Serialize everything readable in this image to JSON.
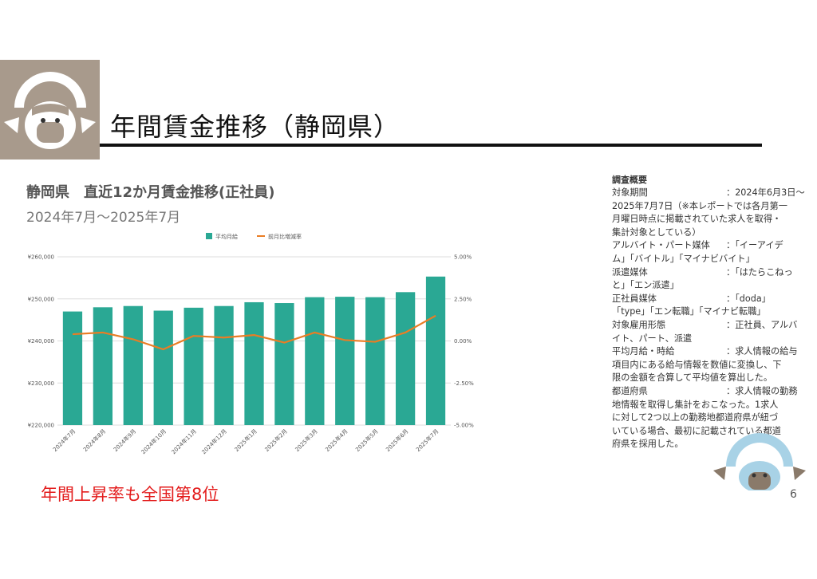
{
  "slide": {
    "title": "年間賃金推移（静岡県）",
    "page_number": "6",
    "highlight": "年間上昇率も全国第8位"
  },
  "chart_header": {
    "title": "静岡県　直近12か月賃金推移(正社員)",
    "subtitle": "2024年7月～2025年7月"
  },
  "chart_data": {
    "type": "bar",
    "categories": [
      "2024年7月",
      "2024年8月",
      "2024年9月",
      "2024年10月",
      "2024年11月",
      "2024年12月",
      "2025年1月",
      "2025年2月",
      "2025年3月",
      "2025年4月",
      "2025年5月",
      "2025年6月",
      "2025年7月"
    ],
    "series": [
      {
        "name": "平均月給",
        "type": "bar",
        "axis": "left",
        "color": "#2aa894",
        "values": [
          247000,
          248000,
          248300,
          247200,
          247900,
          248300,
          249200,
          249000,
          250400,
          250500,
          250400,
          251600,
          255300
        ]
      },
      {
        "name": "前月比増減率",
        "type": "line",
        "axis": "right",
        "color": "#ea7d24",
        "values": [
          0.4,
          0.5,
          0.1,
          -0.5,
          0.3,
          0.2,
          0.35,
          -0.1,
          0.5,
          0.05,
          -0.05,
          0.5,
          1.5
        ]
      }
    ],
    "y_left": {
      "min": 220000,
      "max": 260000,
      "ticks": [
        "¥220,000",
        "¥230,000",
        "¥240,000",
        "¥250,000",
        "¥260,000"
      ]
    },
    "y_right": {
      "min": -5,
      "max": 5,
      "ticks": [
        "-5.00%",
        "-2.50%",
        "0.00%",
        "2.50%",
        "5.00%"
      ]
    },
    "grid": true,
    "legend_position": "top-center"
  },
  "survey": {
    "heading": "調査概要",
    "lines": [
      {
        "label": "対象期間",
        "text": "：2024年6月3日～"
      },
      {
        "label": "",
        "text": "2025年7月7日（※本レポートでは各月第一"
      },
      {
        "label": "",
        "text": "月曜日時点に掲載されていた求人を取得・"
      },
      {
        "label": "",
        "text": "集計対象としている）"
      },
      {
        "label": "アルバイト・パート媒体",
        "text": "：「イーアイデ"
      },
      {
        "label": "",
        "text": "ム」「バイトル」「マイナビバイト」"
      },
      {
        "label": "派遣媒体",
        "text": "：「はたらこねっ"
      },
      {
        "label": "",
        "text": "と」「エン派遣」"
      },
      {
        "label": "正社員媒体",
        "text": "：「doda」"
      },
      {
        "label": "",
        "text": "「type」「エン転職」「マイナビ転職」"
      },
      {
        "label": "対象雇用形態",
        "text": "：正社員、アルバ"
      },
      {
        "label": "",
        "text": "イト、パート、派遣"
      },
      {
        "label": "平均月給・時給",
        "text": "：求人情報の給与"
      },
      {
        "label": "",
        "text": "項目内にある給与情報を数値に変換し、下"
      },
      {
        "label": "",
        "text": "限の金額を合算して平均値を算出した。"
      },
      {
        "label": "都道府県",
        "text": "：求人情報の勤務"
      },
      {
        "label": "",
        "text": "地情報を取得し集計をおこなった。1求人"
      },
      {
        "label": "",
        "text": "に対して2つ以上の勤務地都道府県が紐づ"
      },
      {
        "label": "",
        "text": "いている場合、最初に記載されている都道"
      },
      {
        "label": "",
        "text": "府県を採用した。"
      }
    ]
  },
  "colors": {
    "bar": "#2aa894",
    "line": "#ea7d24",
    "highlight": "#e31b1b",
    "logo_bg": "#a89a8c"
  }
}
